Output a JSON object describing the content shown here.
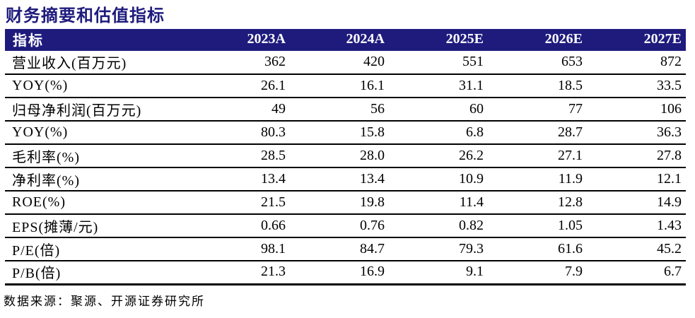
{
  "title": "财务摘要和估值指标",
  "colors": {
    "header_background": "#1e1b7d",
    "header_text": "#ffffff",
    "title_text": "#1e1b7d",
    "body_text": "#000000",
    "rule_lines": "#000000"
  },
  "table": {
    "header": [
      "指标",
      "2023A",
      "2024A",
      "2025E",
      "2026E",
      "2027E"
    ],
    "rows": [
      {
        "label": "营业收入(百万元)",
        "values": [
          "362",
          "420",
          "551",
          "653",
          "872"
        ]
      },
      {
        "label": "YOY(%)",
        "values": [
          "26.1",
          "16.1",
          "31.1",
          "18.5",
          "33.5"
        ]
      },
      {
        "label": "归母净利润(百万元)",
        "values": [
          "49",
          "56",
          "60",
          "77",
          "106"
        ]
      },
      {
        "label": "YOY(%)",
        "values": [
          "80.3",
          "15.8",
          "6.8",
          "28.7",
          "36.3"
        ]
      },
      {
        "label": "毛利率(%)",
        "values": [
          "28.5",
          "28.0",
          "26.2",
          "27.1",
          "27.8"
        ]
      },
      {
        "label": "净利率(%)",
        "values": [
          "13.4",
          "13.4",
          "10.9",
          "11.9",
          "12.1"
        ]
      },
      {
        "label": "ROE(%)",
        "values": [
          "21.5",
          "19.8",
          "11.4",
          "12.8",
          "14.9"
        ]
      },
      {
        "label": "EPS(摊薄/元)",
        "values": [
          "0.66",
          "0.76",
          "0.82",
          "1.05",
          "1.43"
        ]
      },
      {
        "label": "P/E(倍)",
        "values": [
          "98.1",
          "84.7",
          "79.3",
          "61.6",
          "45.2"
        ]
      },
      {
        "label": "P/B(倍)",
        "values": [
          "21.3",
          "16.9",
          "9.1",
          "7.9",
          "6.7"
        ]
      }
    ]
  },
  "footer": {
    "source": "数据来源：聚源、开源证券研究所"
  }
}
